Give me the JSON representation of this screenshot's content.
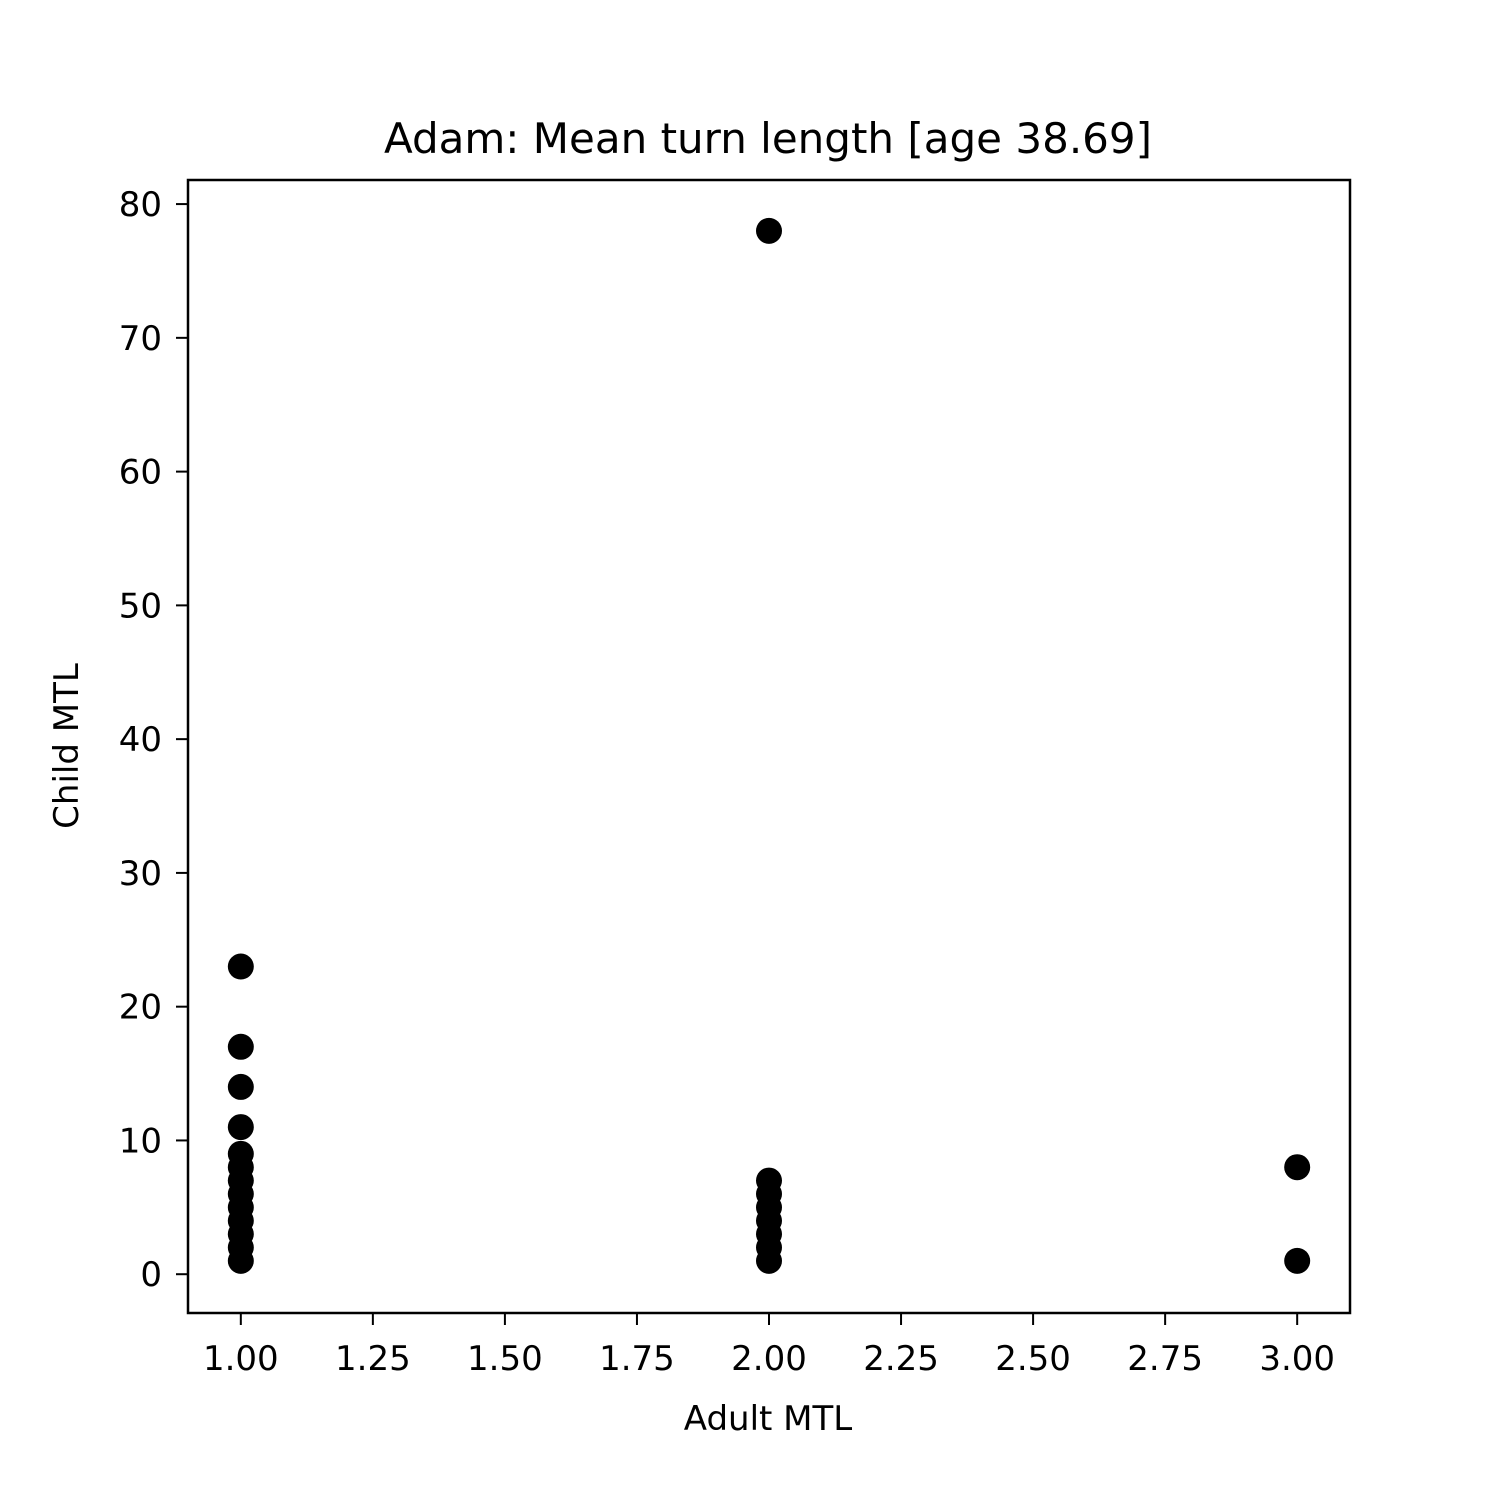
{
  "chart_data": {
    "type": "scatter",
    "title": "Adam: Mean turn length [age 38.69]",
    "xlabel": "Adult MTL",
    "ylabel": "Child MTL",
    "xlim": [
      0.9,
      3.1
    ],
    "ylim": [
      -2.9,
      81.8
    ],
    "xticks": [
      1.0,
      1.25,
      1.5,
      1.75,
      2.0,
      2.25,
      2.5,
      2.75,
      3.0
    ],
    "xtick_labels": [
      "1.00",
      "1.25",
      "1.50",
      "1.75",
      "2.00",
      "2.25",
      "2.50",
      "2.75",
      "3.00"
    ],
    "yticks": [
      0,
      10,
      20,
      30,
      40,
      50,
      60,
      70,
      80
    ],
    "ytick_labels": [
      "0",
      "10",
      "20",
      "30",
      "40",
      "50",
      "60",
      "70",
      "80"
    ],
    "grid": false,
    "marker_color": "#000000",
    "points": [
      {
        "x": 1,
        "y": 1
      },
      {
        "x": 1,
        "y": 2
      },
      {
        "x": 1,
        "y": 3
      },
      {
        "x": 1,
        "y": 4
      },
      {
        "x": 1,
        "y": 5
      },
      {
        "x": 1,
        "y": 6
      },
      {
        "x": 1,
        "y": 7
      },
      {
        "x": 1,
        "y": 8
      },
      {
        "x": 1,
        "y": 9
      },
      {
        "x": 1,
        "y": 11
      },
      {
        "x": 1,
        "y": 14
      },
      {
        "x": 1,
        "y": 17
      },
      {
        "x": 1,
        "y": 23
      },
      {
        "x": 2,
        "y": 1
      },
      {
        "x": 2,
        "y": 2
      },
      {
        "x": 2,
        "y": 3
      },
      {
        "x": 2,
        "y": 4
      },
      {
        "x": 2,
        "y": 5
      },
      {
        "x": 2,
        "y": 6
      },
      {
        "x": 2,
        "y": 7
      },
      {
        "x": 2,
        "y": 78
      },
      {
        "x": 3,
        "y": 1
      },
      {
        "x": 3,
        "y": 8
      }
    ]
  }
}
